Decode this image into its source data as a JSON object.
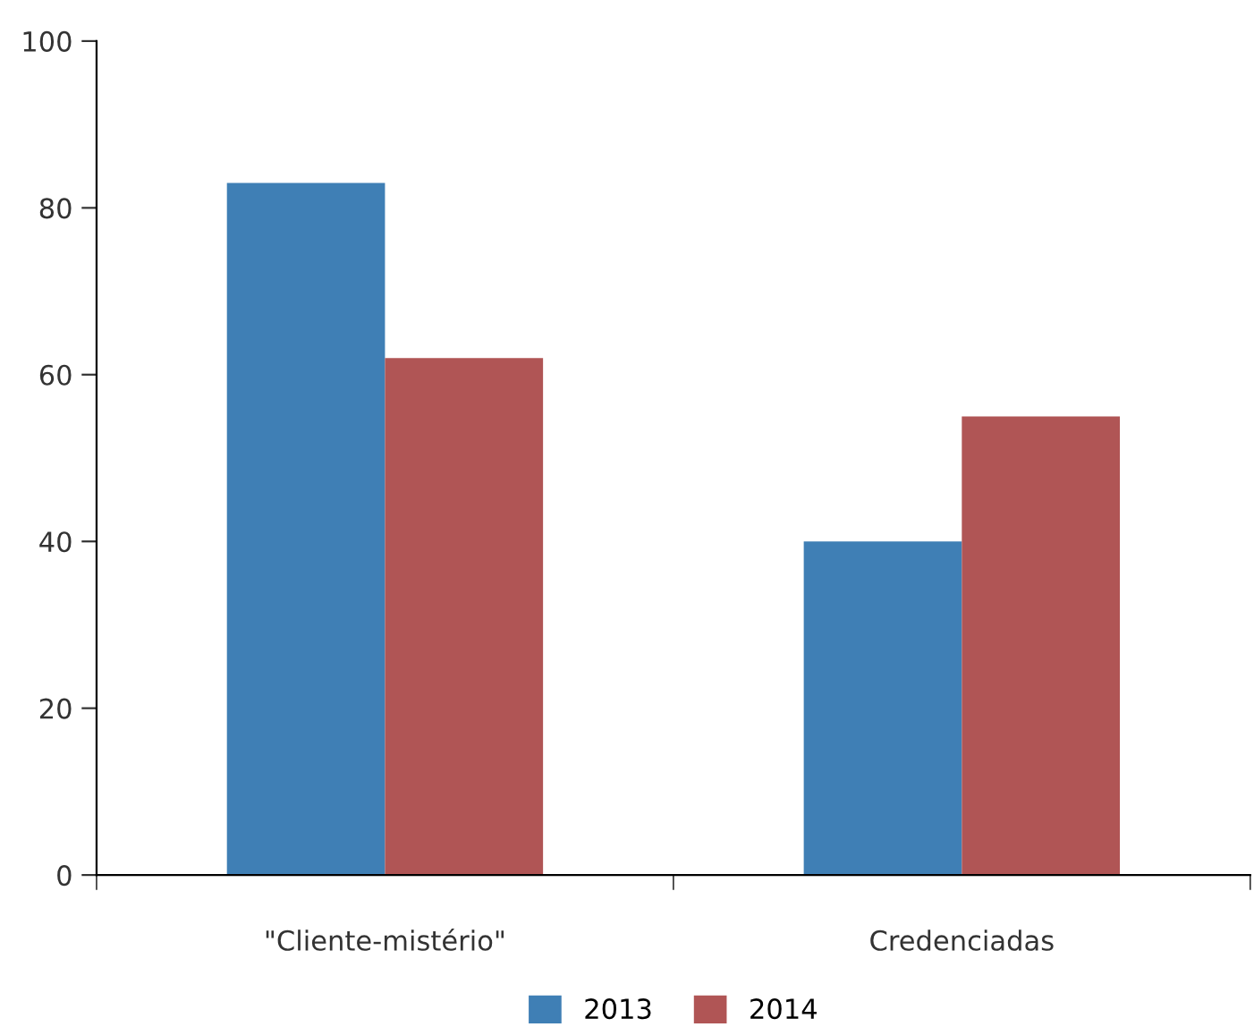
{
  "chart_data": {
    "type": "bar",
    "categories": [
      "\"Cliente-mistério\"",
      "Credenciadas"
    ],
    "series": [
      {
        "name": "2013",
        "color": "#3f7fb5",
        "values": [
          83,
          40
        ]
      },
      {
        "name": "2014",
        "color": "#b05555",
        "values": [
          62,
          55
        ]
      }
    ],
    "ylim": [
      0,
      100
    ],
    "yticks": [
      0,
      20,
      40,
      60,
      80,
      100
    ],
    "grid": false,
    "legend": "bottom"
  }
}
